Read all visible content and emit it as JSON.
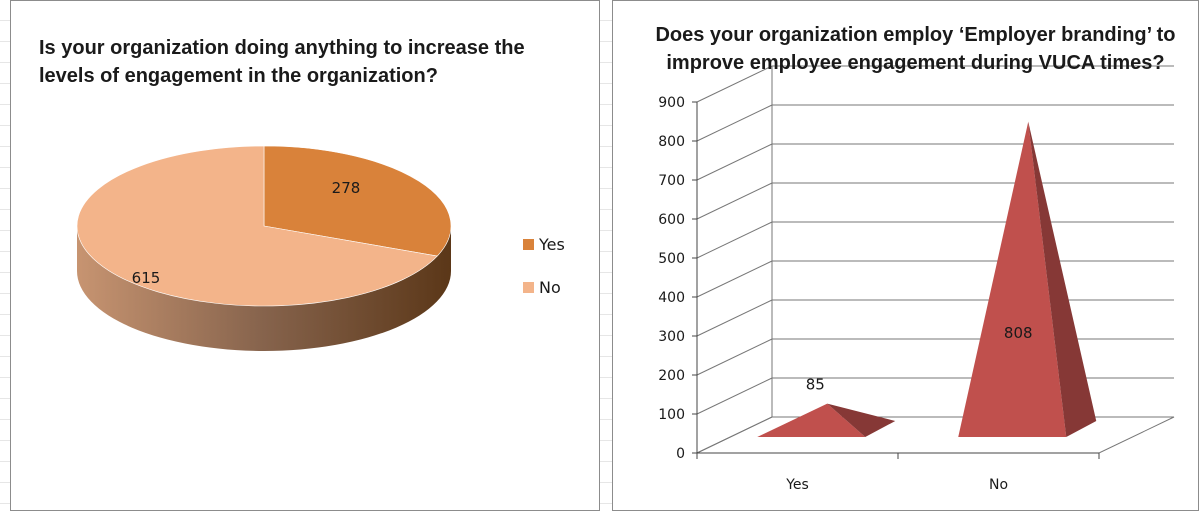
{
  "chart_data": [
    {
      "type": "pie",
      "title": "Is your organization doing anything to increase the levels of engagement in the organization?",
      "categories": [
        "Yes",
        "No"
      ],
      "values": [
        278,
        615
      ],
      "colors": [
        "#d9823a",
        "#f3b48a"
      ],
      "legend_position": "right"
    },
    {
      "type": "bar",
      "title": "Does your organization employ ‘Employer branding’ to improve employee engagement during VUCA times?",
      "categories": [
        "Yes",
        "No"
      ],
      "values": [
        85,
        808
      ],
      "ylim": [
        0,
        900
      ],
      "yticks": [
        "0",
        "100",
        "200",
        "300",
        "400",
        "500",
        "600",
        "700",
        "800",
        "900"
      ],
      "xlabel": "",
      "ylabel": "",
      "grid": true,
      "colors": [
        "#c0504d"
      ]
    }
  ]
}
